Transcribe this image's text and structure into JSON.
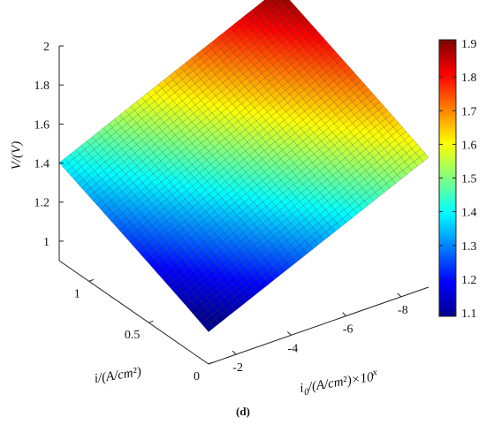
{
  "chart_data": {
    "type": "surface",
    "xlabel": "i₀/(A/cm²)×10ˣ",
    "xlabel_base": "i",
    "xlabel_sub": "0",
    "xlabel_mid": "/(A/cm²)×10",
    "xlabel_sup": "x",
    "ylabel": "i/(A/cm²)",
    "zlabel": "V/(V)",
    "x_ticks": [
      "-2",
      "-4",
      "-6",
      "-8"
    ],
    "x_tick_values": [
      -2,
      -4,
      -6,
      -8
    ],
    "x_range": [
      -1,
      -9
    ],
    "y_ticks": [
      "0",
      "0.5",
      "1"
    ],
    "y_tick_values": [
      0,
      0.5,
      1
    ],
    "y_range": [
      0,
      1.25
    ],
    "z_ticks": [
      "1",
      "1.2",
      "1.4",
      "1.6",
      "1.8",
      "2"
    ],
    "z_tick_values": [
      1,
      1.2,
      1.4,
      1.6,
      1.8,
      2
    ],
    "z_range": [
      0.9,
      2
    ],
    "colorbar": {
      "min": 1.1,
      "max": 1.9,
      "ticks": [
        "1.1",
        "1.2",
        "1.3",
        "1.4",
        "1.5",
        "1.6",
        "1.7",
        "1.8",
        "1.9"
      ],
      "tick_values": [
        1.1,
        1.2,
        1.3,
        1.4,
        1.5,
        1.6,
        1.7,
        1.8,
        1.9
      ],
      "colormap": "jet"
    },
    "surface_corners": {
      "x-1_i0": 1.08,
      "x-9_i0": 1.58,
      "x-1_i1.25": 1.4,
      "x-9_i1.25": 1.9
    },
    "grid": false
  },
  "caption": "(d)"
}
